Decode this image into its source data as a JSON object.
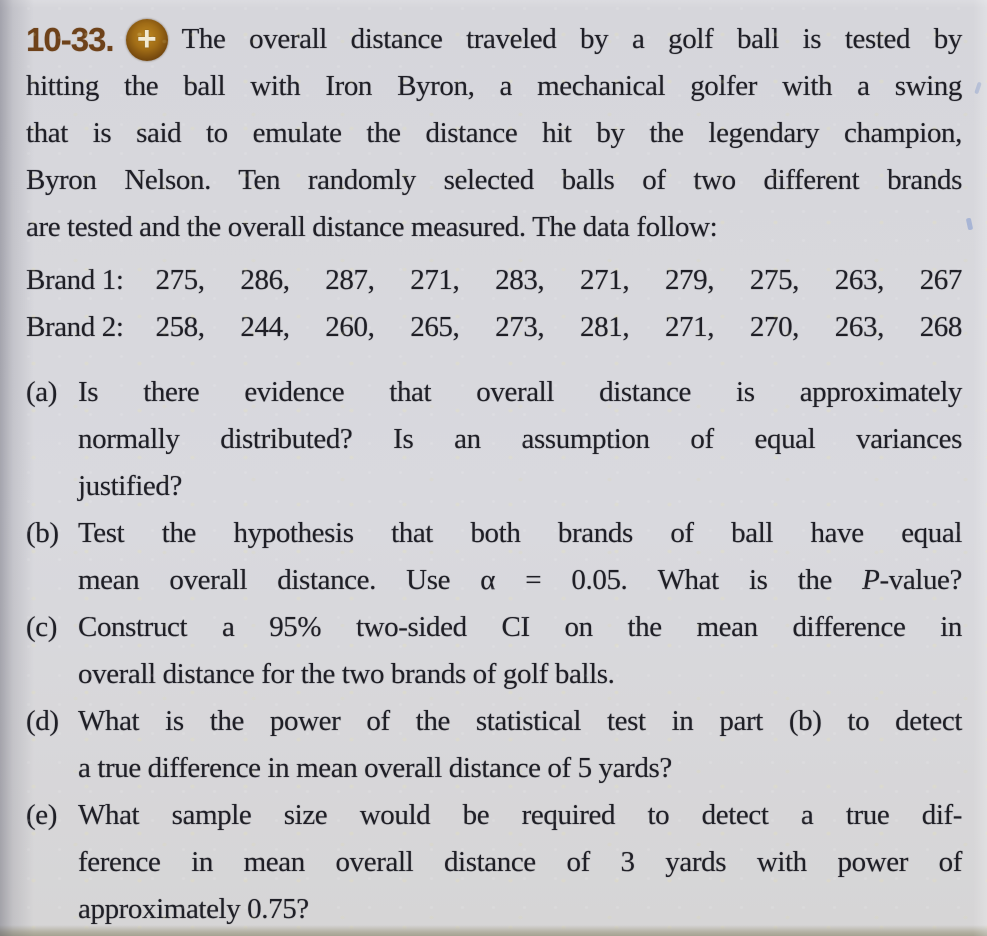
{
  "colors": {
    "page-bg": "#d6d6db",
    "ink": "#1f1f26",
    "accent-brown": "#6e421a",
    "icon-gold": "#c08a22"
  },
  "problem": {
    "number_label": "10-33.",
    "icon_glyph": "+",
    "intro_line_1": "The overall distance traveled by a golf ball is tested by",
    "intro_line_2": "hitting the ball with Iron Byron, a mechanical golfer with a swing",
    "intro_line_3": "that is said to emulate the distance hit by the legendary champion,",
    "intro_line_4": "Byron Nelson. Ten randomly selected balls of two different brands",
    "intro_line_5": "are tested and the overall distance measured. The data follow:"
  },
  "data_rows": [
    {
      "label": "Brand 1:",
      "values": "275, 286, 287, 271, 283, 271, 279, 275, 263, 267"
    },
    {
      "label": "Brand 2:",
      "values": "258, 244, 260, 265, 273, 281, 271, 270, 263, 268"
    }
  ],
  "parts": [
    {
      "label": "(a)",
      "lines": [
        "Is there evidence that overall distance is approximately",
        "normally distributed? Is an assumption of equal variances",
        "justified?"
      ]
    },
    {
      "label": "(b)",
      "lines": [
        "Test the hypothesis that both brands of ball have equal"
      ],
      "line2_pre": "mean overall distance. Use α = 0.05. What is the ",
      "line2_var": "P",
      "line2_post": "-value?"
    },
    {
      "label": "(c)",
      "lines": [
        "Construct a 95% two-sided CI on the mean difference in",
        "overall distance for the two brands of golf balls."
      ]
    },
    {
      "label": "(d)",
      "lines": [
        "What is the power of the statistical test in part (b) to detect",
        "a true difference in mean overall distance of 5 yards?"
      ]
    },
    {
      "label": "(e)",
      "lines": [
        "What sample size would be required to detect a true dif-",
        "ference in mean overall distance of 3 yards with power of",
        "approximately 0.75?"
      ]
    }
  ]
}
